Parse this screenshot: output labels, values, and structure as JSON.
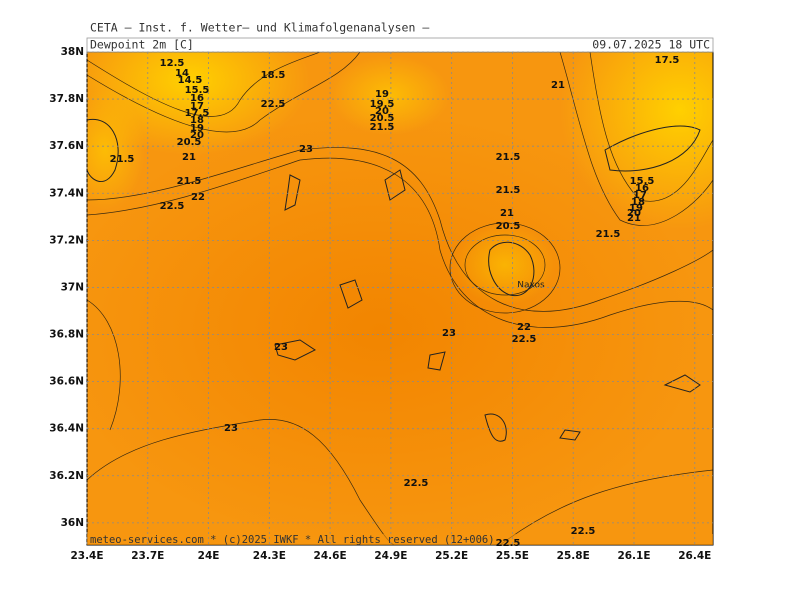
{
  "header": {
    "title": "CETA — Inst. f. Wetter— und Klimafolgenanalysen —",
    "field": "Dewpoint 2m [C]",
    "time": "09.07.2025 18 UTC"
  },
  "footer": "meteo-services.com * (c)2025 IWKF * All rights reserved (12+006)",
  "map": {
    "xlim": [
      23.4,
      26.49
    ],
    "ylim": [
      35.906,
      38
    ],
    "xticks": [
      {
        "value": 23.4,
        "label": "23.4E"
      },
      {
        "value": 23.7,
        "label": "23.7E"
      },
      {
        "value": 24,
        "label": "24E"
      },
      {
        "value": 24.3,
        "label": "24.3E"
      },
      {
        "value": 24.6,
        "label": "24.6E"
      },
      {
        "value": 24.9,
        "label": "24.9E"
      },
      {
        "value": 25.2,
        "label": "25.2E"
      },
      {
        "value": 25.5,
        "label": "25.5E"
      },
      {
        "value": 25.8,
        "label": "25.8E"
      },
      {
        "value": 26.1,
        "label": "26.1E"
      },
      {
        "value": 26.4,
        "label": "26.4E"
      }
    ],
    "yticks": [
      {
        "value": 36,
        "label": "36N"
      },
      {
        "value": 36.2,
        "label": "36.2N"
      },
      {
        "value": 36.4,
        "label": "36.4N"
      },
      {
        "value": 36.6,
        "label": "36.6N"
      },
      {
        "value": 36.8,
        "label": "36.8N"
      },
      {
        "value": 37,
        "label": "37N"
      },
      {
        "value": 37.2,
        "label": "37.2N"
      },
      {
        "value": 37.4,
        "label": "37.4N"
      },
      {
        "value": 37.6,
        "label": "37.6N"
      },
      {
        "value": 37.8,
        "label": "37.8N"
      },
      {
        "value": 38,
        "label": "38N"
      }
    ],
    "grid": true,
    "place": "Naxos",
    "contour_labels": [
      12.5,
      14,
      14.5,
      15.5,
      16,
      17,
      17.5,
      18,
      19,
      20,
      20.5,
      21,
      21.5,
      22,
      22.5,
      21.5,
      18.5,
      22.5,
      23,
      19,
      19.5,
      20,
      20.5,
      21.5,
      21,
      17.5,
      21.5,
      21.5,
      21,
      20.5,
      15.5,
      16,
      17,
      18,
      19,
      20,
      21,
      21.5,
      22,
      22.5,
      23,
      23,
      23,
      22.5,
      22.5,
      22.5
    ]
  }
}
